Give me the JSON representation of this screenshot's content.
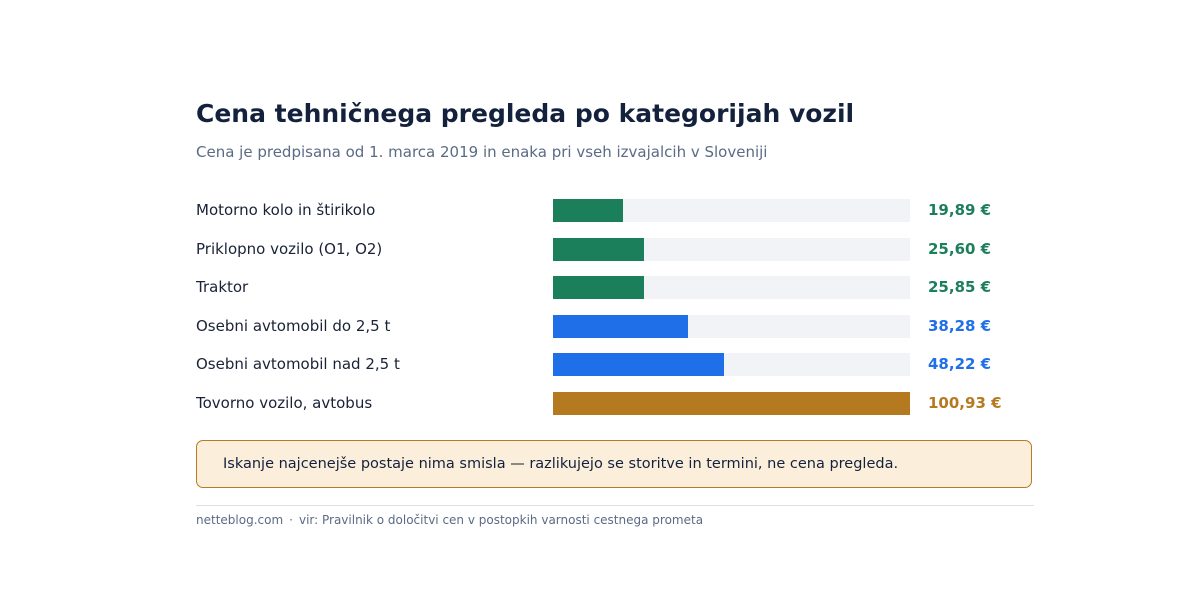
{
  "title": "Cena tehničnega pregleda po kategorijah vozil",
  "subtitle": "Cena je predpisana od 1. marca 2019 in enaka pri vseh izvajalcih v Sloveniji",
  "chart_data": {
    "type": "bar",
    "orientation": "horizontal",
    "title": "Cena tehničnega pregleda po kategorijah vozil",
    "subtitle": "Cena je predpisana od 1. marca 2019 in enaka pri vseh izvajalcih v Sloveniji",
    "categories": [
      "Motorno kolo in štirikolo",
      "Priklopno vozilo (O1, O2)",
      "Traktor",
      "Osebni avtomobil do 2,5 t",
      "Osebni avtomobil nad 2,5 t",
      "Tovorno vozilo, avtobus"
    ],
    "values": [
      19.89,
      25.6,
      25.85,
      38.28,
      48.22,
      100.93
    ],
    "value_labels": [
      "19,89 €",
      "25,60 €",
      "25,85 €",
      "38,28 €",
      "48,22 €",
      "100,93 €"
    ],
    "colors": [
      "#1c7f5b",
      "#1c7f5b",
      "#1c7f5b",
      "#1f6fe8",
      "#1f6fe8",
      "#b57a1f"
    ],
    "xlim": [
      0,
      100.93
    ],
    "xlabel": "",
    "ylabel": "",
    "grid": false,
    "legend": false
  },
  "colors": {
    "green": "#1c7f5b",
    "blue": "#1f6fe8",
    "amber": "#b57a1f",
    "track": "#f1f3f7"
  },
  "note": {
    "text": "Iskanje najcenejše postaje nima smisla — razlikujejo se storitve in termini, ne cena pregleda."
  },
  "footer": {
    "site": "netteblog.com",
    "separator": "·",
    "source": "vir: Pravilnik o določitvi cen v postopkih varnosti cestnega prometa"
  }
}
